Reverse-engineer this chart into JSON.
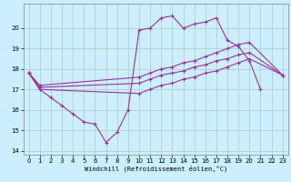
{
  "title": "",
  "xlabel": "Windchill (Refroidissement éolien,°C)",
  "ylabel": "",
  "bg_color": "#cceeff",
  "line_color": "#993399",
  "grid_color": "#aaccbb",
  "xlim": [
    -0.5,
    23.5
  ],
  "ylim": [
    13.8,
    21.2
  ],
  "yticks": [
    14,
    15,
    16,
    17,
    18,
    19,
    20
  ],
  "xticks": [
    0,
    1,
    2,
    3,
    4,
    5,
    6,
    7,
    8,
    9,
    10,
    11,
    12,
    13,
    14,
    15,
    16,
    17,
    18,
    19,
    20,
    21,
    22,
    23
  ],
  "curve1_x": [
    0,
    1,
    2,
    3,
    4,
    5,
    6,
    7,
    8,
    9,
    10,
    11,
    12,
    13,
    14,
    15,
    16,
    17,
    18,
    19,
    20,
    21
  ],
  "curve1_y": [
    17.8,
    17.0,
    16.6,
    16.2,
    15.8,
    15.4,
    15.3,
    14.4,
    14.9,
    16.0,
    19.9,
    20.0,
    20.5,
    20.6,
    20.0,
    20.2,
    20.3,
    20.5,
    19.4,
    19.1,
    18.4,
    17.0
  ],
  "curve2_x": [
    0,
    1,
    10,
    11,
    12,
    13,
    14,
    15,
    16,
    17,
    18,
    19,
    20,
    23
  ],
  "curve2_y": [
    17.8,
    17.2,
    17.6,
    17.8,
    18.0,
    18.1,
    18.3,
    18.4,
    18.6,
    18.8,
    19.0,
    19.2,
    19.3,
    17.7
  ],
  "curve3_x": [
    0,
    1,
    10,
    11,
    12,
    13,
    14,
    15,
    16,
    17,
    18,
    19,
    20,
    23
  ],
  "curve3_y": [
    17.8,
    17.1,
    17.3,
    17.5,
    17.7,
    17.8,
    17.9,
    18.1,
    18.2,
    18.4,
    18.5,
    18.7,
    18.8,
    17.7
  ],
  "curve4_x": [
    0,
    1,
    10,
    11,
    12,
    13,
    14,
    15,
    16,
    17,
    18,
    19,
    20,
    23
  ],
  "curve4_y": [
    17.8,
    17.0,
    16.8,
    17.0,
    17.2,
    17.3,
    17.5,
    17.6,
    17.8,
    17.9,
    18.1,
    18.3,
    18.5,
    17.7
  ]
}
